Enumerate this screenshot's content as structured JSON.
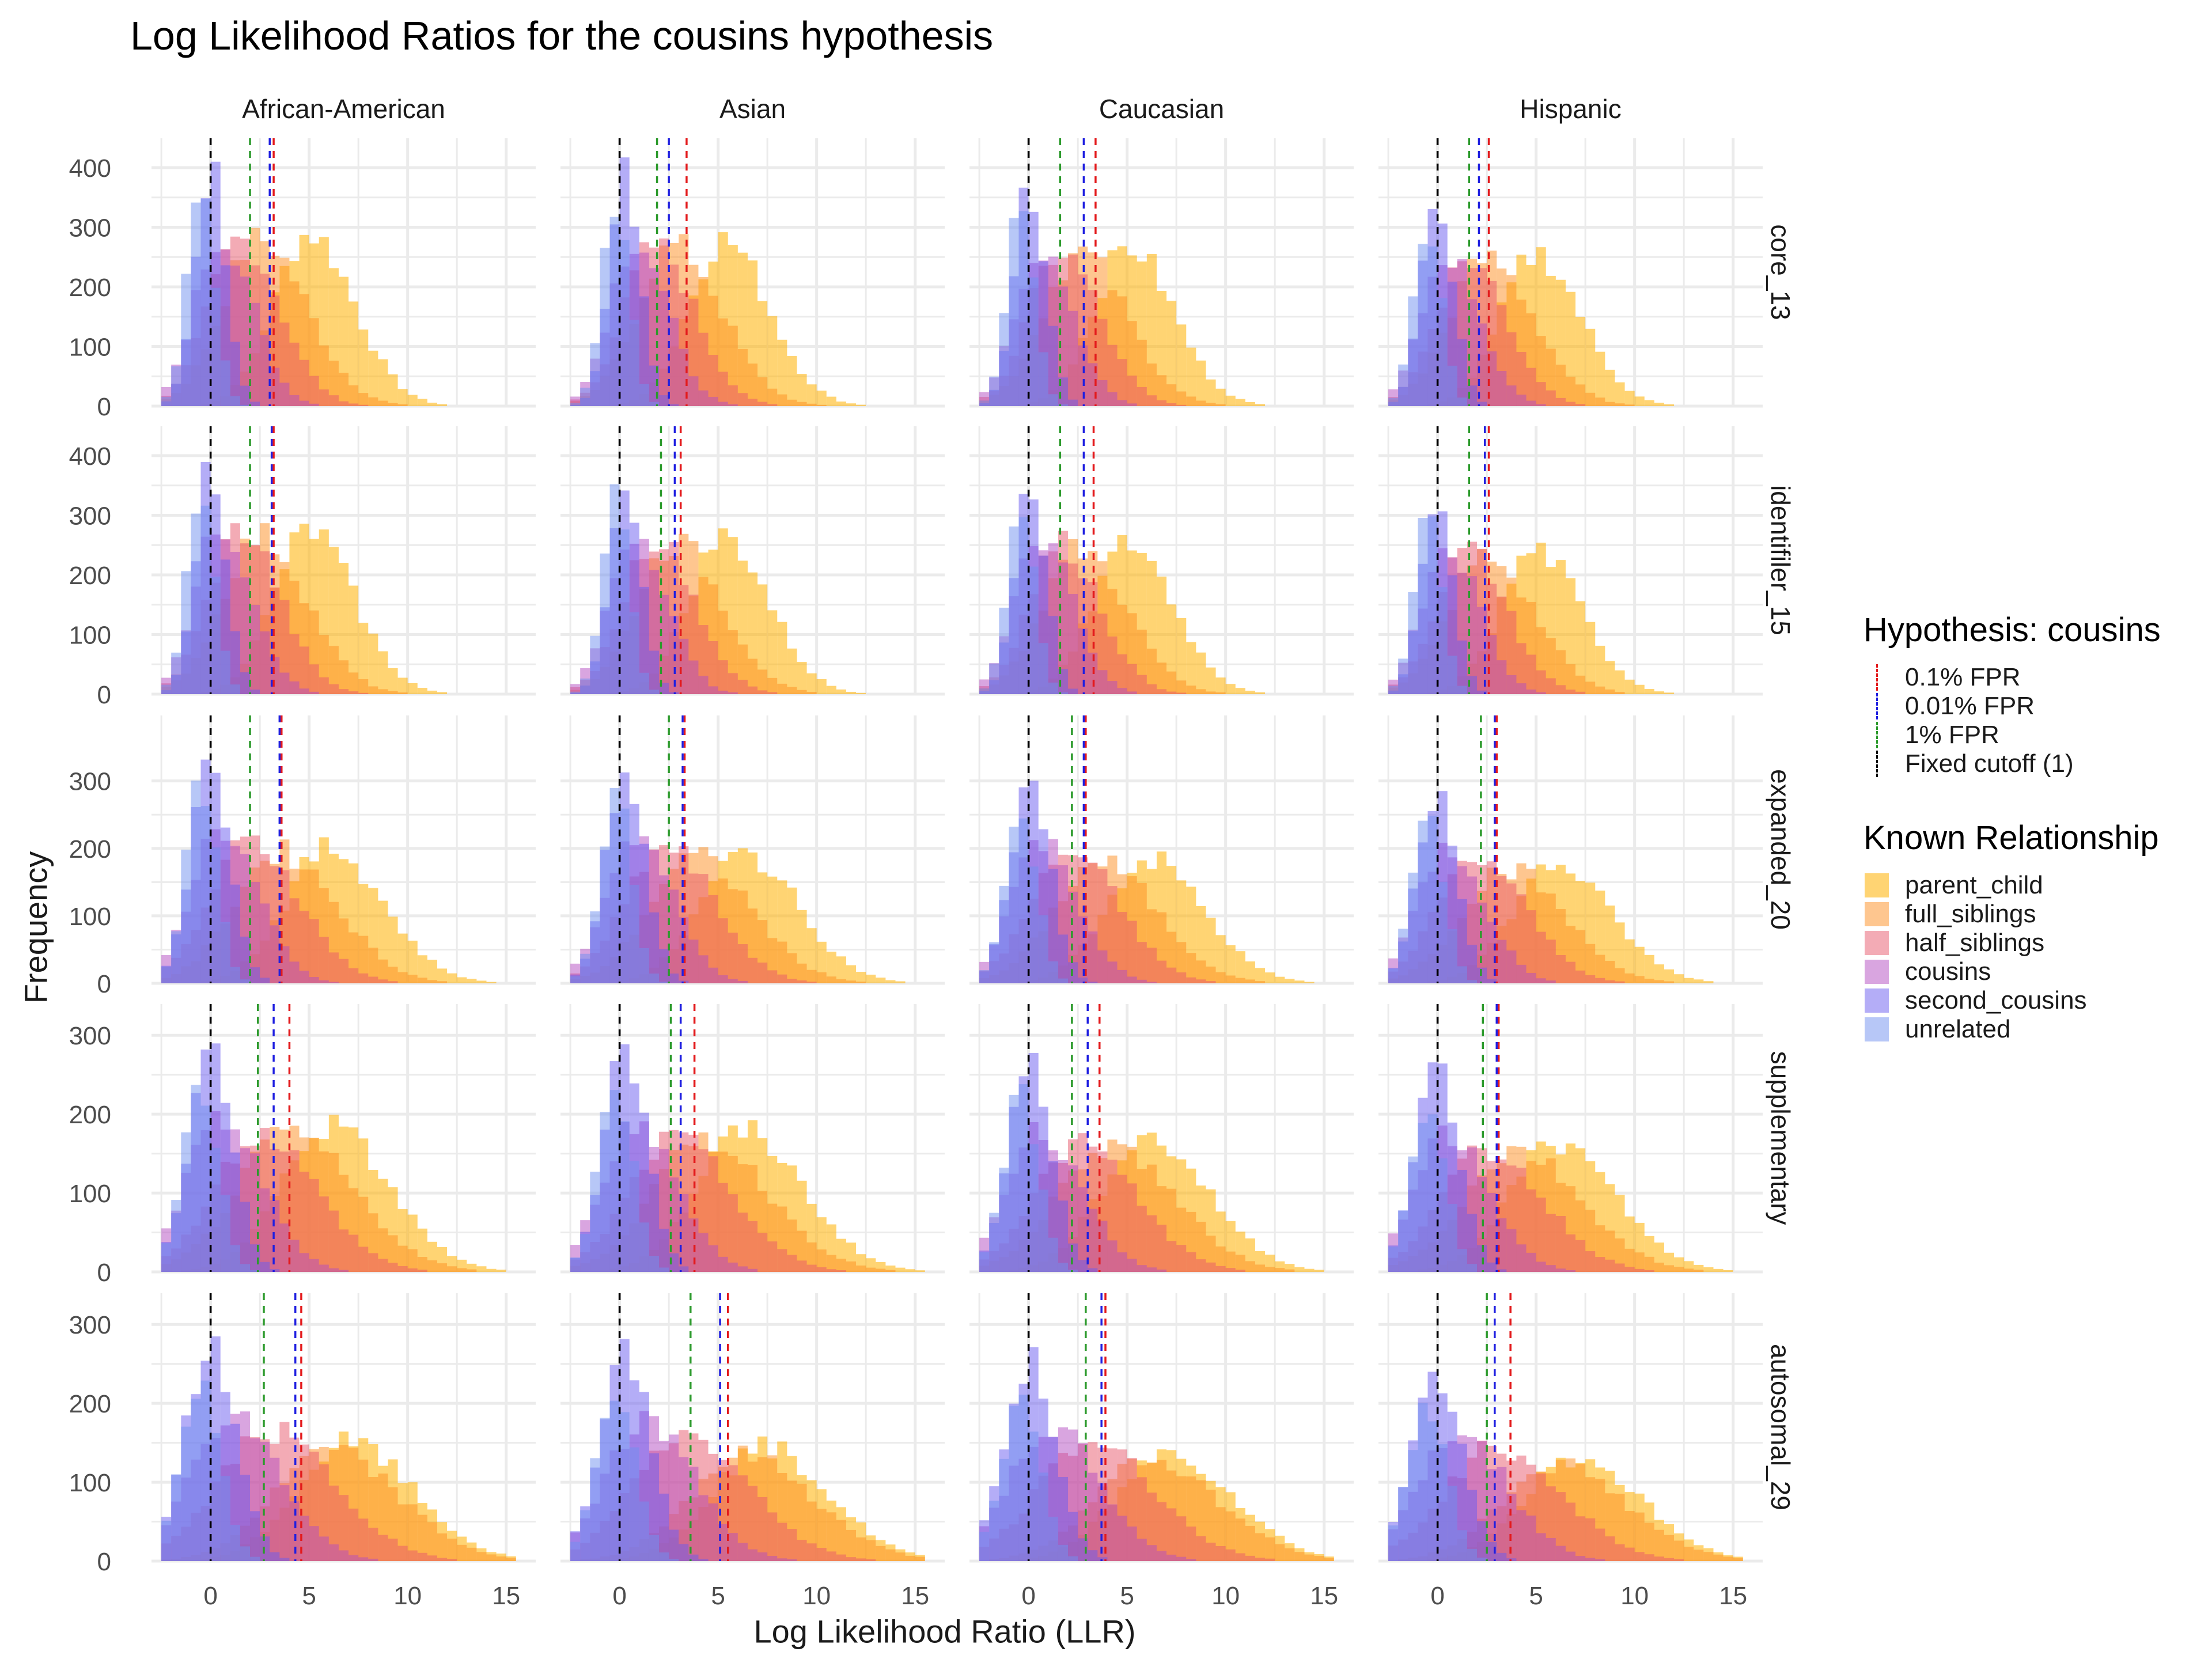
{
  "chart_data": {
    "type": "histogram-facet",
    "title": "Log Likelihood Ratios for the cousins hypothesis",
    "xlabel": "Log Likelihood Ratio (LLR)",
    "ylabel": "Frequency",
    "columns": [
      "African-American",
      "Asian",
      "Caucasian",
      "Hispanic"
    ],
    "rows": [
      "core_13",
      "identifiler_15",
      "expanded_20",
      "supplementary",
      "autosomal_29"
    ],
    "xlim": [
      -3,
      16.5
    ],
    "x_ticks": [
      0,
      5,
      10,
      15
    ],
    "x_tick_labels": [
      "0",
      "5",
      "10",
      "15"
    ],
    "bin_width": 0.5,
    "row_ylim": [
      [
        0,
        430
      ],
      [
        0,
        430
      ],
      [
        0,
        380
      ],
      [
        0,
        325
      ],
      [
        0,
        325
      ]
    ],
    "row_y_ticks": [
      [
        0,
        100,
        200,
        300,
        400
      ],
      [
        0,
        100,
        200,
        300,
        400
      ],
      [
        0,
        100,
        200,
        300
      ],
      [
        0,
        100,
        200,
        300
      ],
      [
        0,
        100,
        200,
        300
      ]
    ],
    "relationships": [
      {
        "name": "parent_child",
        "color": "#ffb000",
        "peak_by_row": [
          5.0,
          5.0,
          6.0,
          6.0,
          7.0
        ],
        "spread_by_row": [
          1.8,
          1.8,
          2.2,
          2.4,
          2.6
        ],
        "peak_height_by_row": [
          290,
          275,
          200,
          185,
          150
        ]
      },
      {
        "name": "full_siblings",
        "color": "#fe8e1f",
        "peak_by_row": [
          2.5,
          2.5,
          3.5,
          4.0,
          6.0
        ],
        "spread_by_row": [
          1.9,
          1.9,
          2.3,
          2.6,
          2.8
        ],
        "peak_height_by_row": [
          280,
          265,
          195,
          175,
          140
        ]
      },
      {
        "name": "half_siblings",
        "color": "#e8576b",
        "peak_by_row": [
          1.5,
          1.5,
          2.0,
          2.5,
          3.0
        ],
        "spread_by_row": [
          1.6,
          1.6,
          2.0,
          2.3,
          2.6
        ],
        "peak_height_by_row": [
          280,
          275,
          210,
          175,
          165
        ]
      },
      {
        "name": "cousins",
        "color": "#b44bc2",
        "peak_by_row": [
          0.5,
          0.5,
          0.5,
          0.5,
          1.0
        ],
        "spread_by_row": [
          1.3,
          1.3,
          1.5,
          1.7,
          2.0
        ],
        "peak_height_by_row": [
          290,
          285,
          230,
          195,
          185
        ]
      },
      {
        "name": "second_cousins",
        "color": "#6a5cf0",
        "peak_by_row": [
          0.0,
          0.0,
          0.0,
          0.0,
          0.0
        ],
        "spread_by_row": [
          0.8,
          0.8,
          1.0,
          1.1,
          1.3
        ],
        "peak_height_by_row": [
          400,
          380,
          330,
          290,
          270
        ]
      },
      {
        "name": "unrelated",
        "color": "#6f8ff0",
        "peak_by_row": [
          -0.5,
          -0.5,
          -0.5,
          -0.5,
          -0.5
        ],
        "spread_by_row": [
          0.7,
          0.7,
          0.8,
          0.9,
          1.0
        ],
        "peak_height_by_row": [
          360,
          340,
          290,
          240,
          220
        ]
      }
    ],
    "cutoff_lines": [
      {
        "name": "0.1% FPR",
        "color": "#e31a1c",
        "values": [
          [
            3.2,
            3.4,
            3.4,
            2.6
          ],
          [
            3.2,
            3.1,
            3.3,
            2.6
          ],
          [
            3.6,
            3.3,
            2.9,
            3.0
          ],
          [
            4.0,
            3.8,
            3.6,
            3.1
          ],
          [
            4.6,
            5.5,
            3.9,
            3.7
          ]
        ]
      },
      {
        "name": "0.01% FPR",
        "color": "#1f1fe0",
        "values": [
          [
            3.0,
            2.5,
            2.8,
            2.1
          ],
          [
            3.1,
            2.8,
            2.8,
            2.4
          ],
          [
            3.5,
            3.2,
            2.8,
            2.9
          ],
          [
            3.2,
            3.1,
            3.0,
            3.0
          ],
          [
            4.3,
            5.1,
            3.7,
            2.9
          ]
        ]
      },
      {
        "name": "1% FPR",
        "color": "#2c9a2c",
        "values": [
          [
            2.0,
            1.9,
            1.6,
            1.6
          ],
          [
            2.0,
            2.1,
            1.6,
            1.6
          ],
          [
            2.0,
            2.5,
            2.2,
            2.2
          ],
          [
            2.4,
            2.6,
            2.2,
            2.3
          ],
          [
            2.7,
            3.6,
            2.9,
            2.5
          ]
        ]
      },
      {
        "name": "Fixed cutoff (1)",
        "color": "#000000",
        "values": [
          [
            0,
            0,
            0,
            0
          ],
          [
            0,
            0,
            0,
            0
          ],
          [
            0,
            0,
            0,
            0
          ],
          [
            0,
            0,
            0,
            0
          ],
          [
            0,
            0,
            0,
            0
          ]
        ]
      }
    ]
  },
  "legend": {
    "hypothesis_title": "Hypothesis: cousins",
    "hypothesis_items": [
      "0.1% FPR",
      "0.01% FPR",
      "1% FPR",
      "Fixed cutoff (1)"
    ],
    "relationship_title": "Known Relationship",
    "relationship_items": [
      "parent_child",
      "full_siblings",
      "half_siblings",
      "cousins",
      "second_cousins",
      "unrelated"
    ]
  }
}
